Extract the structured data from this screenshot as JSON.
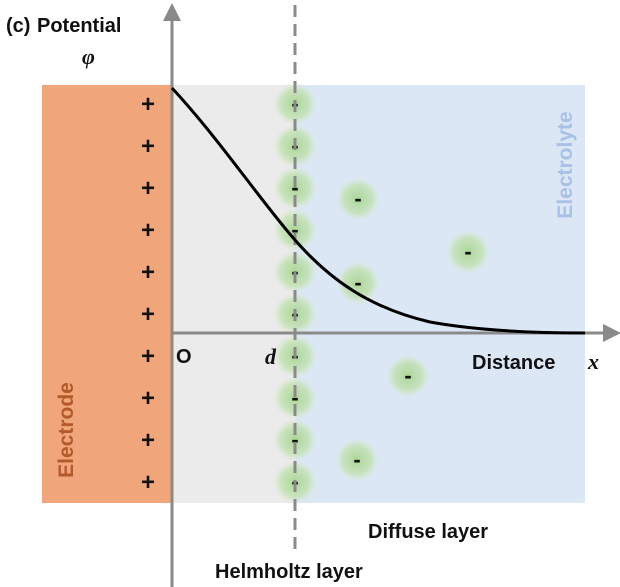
{
  "figure": {
    "panel_label": "(c)",
    "y_axis_label": "Potential",
    "y_axis_symbol": "φ",
    "x_axis_label": "Distance",
    "x_axis_symbol": "x",
    "origin_label": "O",
    "d_label": "d",
    "electrode_label": "Electrode",
    "electrolyte_label": "Electrolyte",
    "diffuse_layer_label": "Diffuse layer",
    "helmholtz_layer_label": "Helmholtz layer",
    "positive_sign": "+",
    "negative_sign": "-",
    "colors": {
      "electrode": "#f0a67a",
      "helmholtz_region": "#ebebeb",
      "electrolyte_region": "#dce7f5",
      "electrolyte_text": "#a9c1e6",
      "ion_glow": "#b7dca3",
      "curve": "#000000",
      "axis": "#8a8a8a"
    }
  }
}
